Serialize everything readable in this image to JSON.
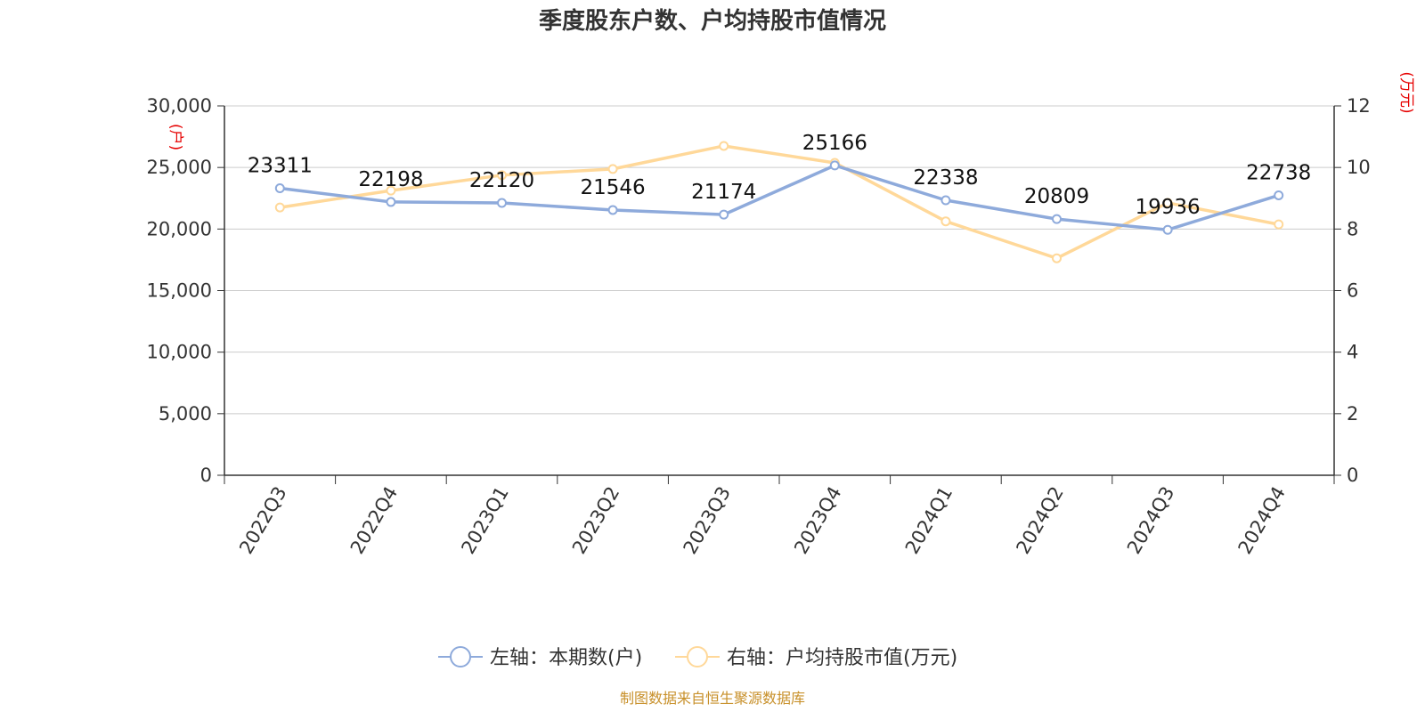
{
  "title": "季度股东户数、户均持股市值情况",
  "source": "制图数据来自恒生聚源数据库",
  "colors": {
    "left": "#8eaadb",
    "right": "#ffd899",
    "unit": "#e60000",
    "source": "#c8902a"
  },
  "chart_data": {
    "type": "line",
    "categories": [
      "2022Q3",
      "2022Q4",
      "2023Q1",
      "2023Q2",
      "2023Q3",
      "2023Q4",
      "2024Q1",
      "2024Q2",
      "2024Q3",
      "2024Q4"
    ],
    "series": [
      {
        "name": "左轴：本期数(户)",
        "axis": "left",
        "values": [
          23311,
          22198,
          22120,
          21546,
          21174,
          25166,
          22338,
          20809,
          19936,
          22738
        ],
        "labels": [
          "23311",
          "22198",
          "22120",
          "21546",
          "21174",
          "25166",
          "22338",
          "20809",
          "19936",
          "22738"
        ]
      },
      {
        "name": "右轴：户均持股市值(万元)",
        "axis": "right",
        "values": [
          8.7,
          9.25,
          9.75,
          9.95,
          10.7,
          10.15,
          8.25,
          7.05,
          8.85,
          8.15
        ]
      }
    ],
    "left_axis": {
      "unit": "(户)",
      "range": [
        0,
        30000
      ],
      "ticks": [
        0,
        5000,
        10000,
        15000,
        20000,
        25000,
        30000
      ],
      "tick_labels": [
        "0",
        "5,000",
        "10,000",
        "15,000",
        "20,000",
        "25,000",
        "30,000"
      ]
    },
    "right_axis": {
      "unit": "(万元)",
      "range": [
        0,
        12
      ],
      "ticks": [
        0,
        2,
        4,
        6,
        8,
        10,
        12
      ],
      "tick_labels": [
        "0",
        "2",
        "4",
        "6",
        "8",
        "10",
        "12"
      ]
    },
    "grid": true,
    "legend_position": "bottom"
  }
}
